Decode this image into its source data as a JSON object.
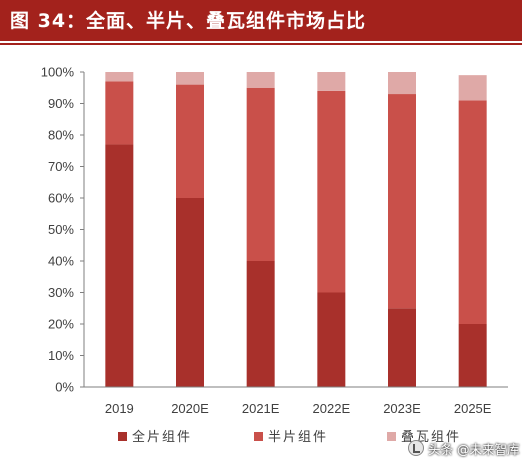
{
  "header": {
    "title": "图 34：全面、半片、叠瓦组件市场占比"
  },
  "chart_data": {
    "type": "bar",
    "stacked": true,
    "categories": [
      "2019",
      "2020E",
      "2021E",
      "2022E",
      "2023E",
      "2025E"
    ],
    "series": [
      {
        "name": "全片组件",
        "color": "#a8302b",
        "values": [
          77,
          60,
          40,
          30,
          25,
          20
        ]
      },
      {
        "name": "半片组件",
        "color": "#c9504a",
        "values": [
          20,
          36,
          55,
          64,
          68,
          71
        ]
      },
      {
        "name": "叠瓦组件",
        "color": "#dfa9a7",
        "values": [
          3,
          4,
          5,
          6,
          7,
          8
        ]
      }
    ],
    "ylim": [
      0,
      100
    ],
    "y_ticks": [
      "0%",
      "10%",
      "20%",
      "30%",
      "40%",
      "50%",
      "60%",
      "70%",
      "80%",
      "90%",
      "100%"
    ],
    "y_tick_values": [
      0,
      10,
      20,
      30,
      40,
      50,
      60,
      70,
      80,
      90,
      100
    ],
    "grid": false,
    "legend_position": "bottom"
  },
  "watermark": {
    "text": "头条 @未来智库"
  }
}
